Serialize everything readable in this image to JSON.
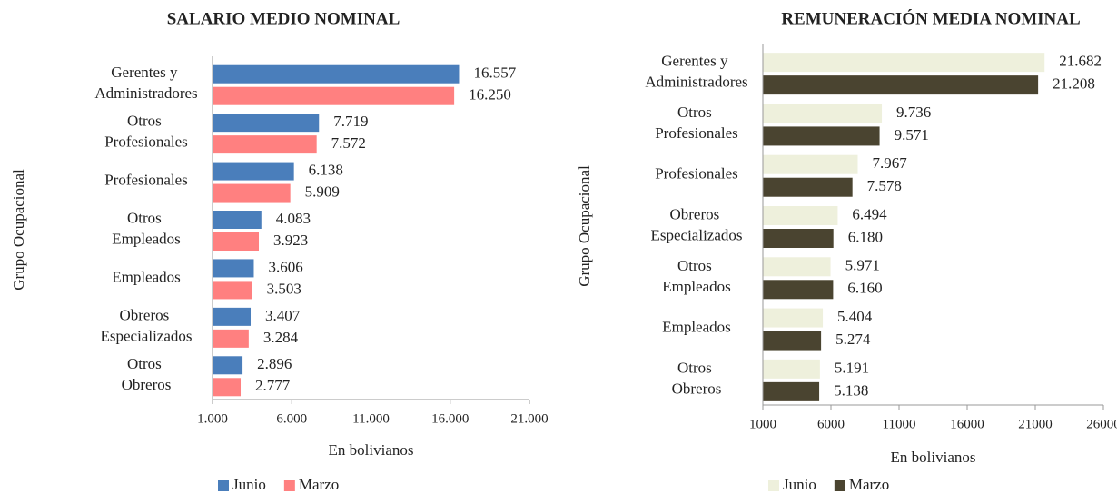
{
  "chart_data": [
    {
      "type": "hbar",
      "title": "SALARIO MEDIO NOMINAL",
      "x_label": "En bolivianos",
      "y_label": "Grupo Ocupacional",
      "categories": [
        "Gerentes y Administradores",
        "Otros Profesionales",
        "Profesionales",
        "Otros Empleados",
        "Empleados",
        "Obreros Especializados",
        "Otros Obreros"
      ],
      "series": [
        {
          "name": "Junio",
          "color": "#4a7ebb",
          "values": [
            16557,
            7719,
            6138,
            4083,
            3606,
            3407,
            2896
          ],
          "value_labels": [
            "16.557",
            "7.719",
            "6.138",
            "4.083",
            "3.606",
            "3.407",
            "2.896"
          ]
        },
        {
          "name": "Marzo",
          "color": "#ff8080",
          "values": [
            16250,
            7572,
            5909,
            3923,
            3503,
            3284,
            2777
          ],
          "value_labels": [
            "16.250",
            "7.572",
            "5.909",
            "3.923",
            "3.503",
            "3.284",
            "2.777"
          ]
        }
      ],
      "xlim": [
        1000,
        21000
      ],
      "xticks": [
        {
          "value": 1000,
          "label": "1.000"
        },
        {
          "value": 6000,
          "label": "6.000"
        },
        {
          "value": 11000,
          "label": "11.000"
        },
        {
          "value": 16000,
          "label": "16.000"
        },
        {
          "value": 21000,
          "label": "21.000"
        }
      ],
      "legend": "bottom-left"
    },
    {
      "type": "hbar",
      "title": "REMUNERACIÓN MEDIA NOMINAL",
      "x_label": "En bolivianos",
      "y_label": "Grupo Ocupacional",
      "categories": [
        "Gerentes y Administradores",
        "Otros Profesionales",
        "Profesionales",
        "Obreros Especializados",
        "Otros Empleados",
        "Empleados",
        "Otros Obreros"
      ],
      "series": [
        {
          "name": "Junio",
          "color": "#eef0dc",
          "values": [
            21682,
            9736,
            7967,
            6494,
            5971,
            5404,
            5191
          ],
          "value_labels": [
            "21.682",
            "9.736",
            "7.967",
            "6.494",
            "5.971",
            "5.404",
            "5.191"
          ]
        },
        {
          "name": "Marzo",
          "color": "#4a4430",
          "values": [
            21208,
            9571,
            7578,
            6180,
            6160,
            5274,
            5138
          ],
          "value_labels": [
            "21.208",
            "9.571",
            "7.578",
            "6.180",
            "6.160",
            "5.274",
            "5.138"
          ]
        }
      ],
      "xlim": [
        1000,
        26000
      ],
      "xticks": [
        1000,
        6000,
        11000,
        16000,
        21000,
        26000
      ],
      "legend": "bottom-left"
    }
  ]
}
